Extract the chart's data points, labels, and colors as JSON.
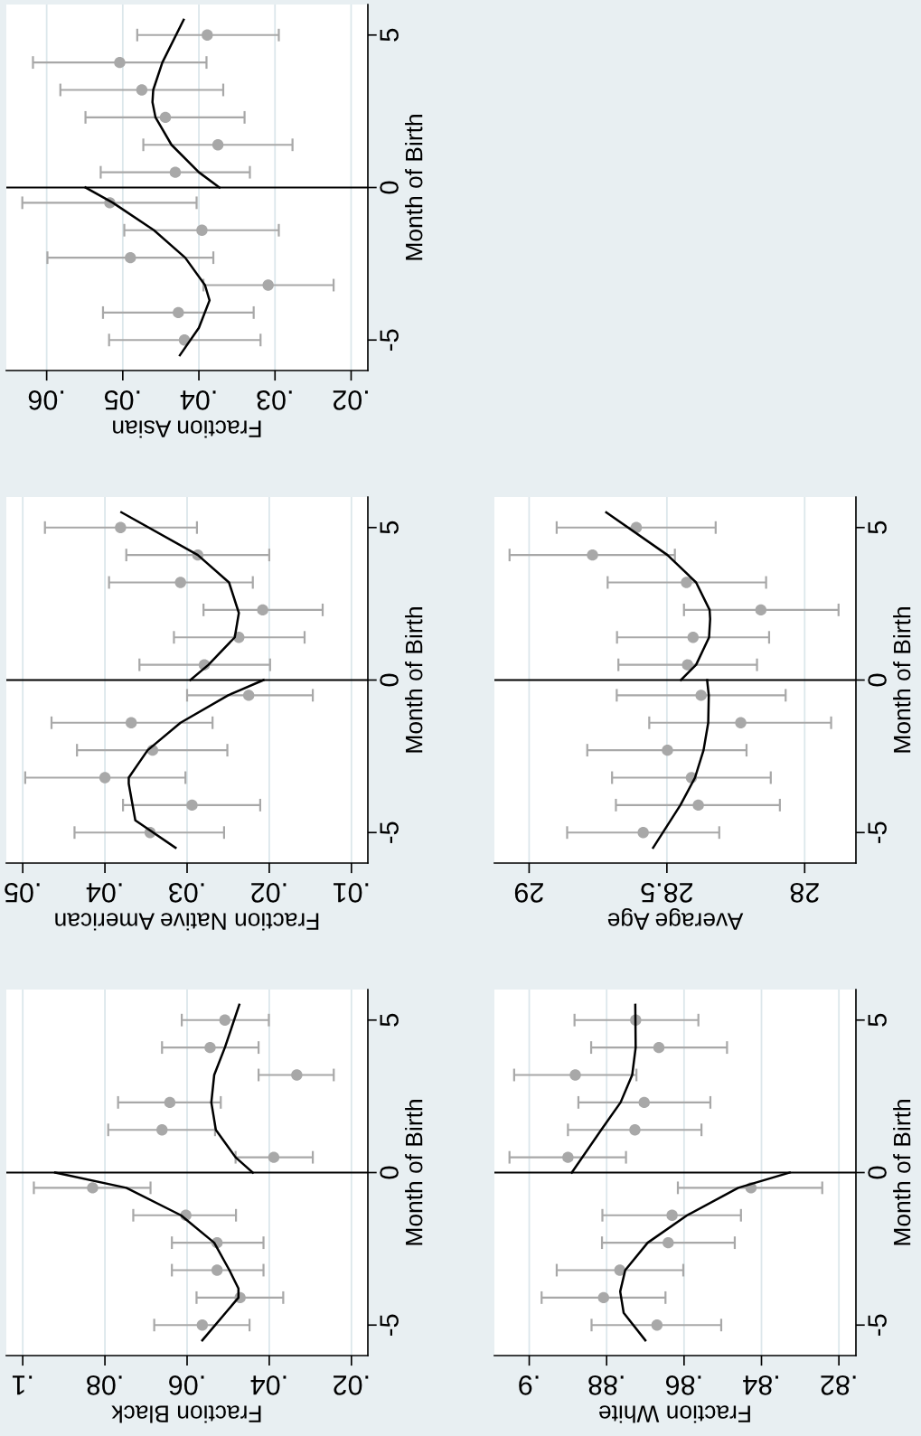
{
  "chart_data": [
    {
      "type": "scatter",
      "xlabel": "Fraction Black",
      "ylabel": "Month of Birth",
      "marker": "circle",
      "grid": "x",
      "ylim": [
        -6,
        6
      ],
      "yticks": [
        -5,
        0,
        5
      ],
      "xlim": [
        0.104,
        0.016
      ],
      "xticks": [
        {
          "value": 0.1,
          "label": ".1"
        },
        {
          "value": 0.08,
          "label": ".08"
        },
        {
          "value": 0.06,
          "label": ".06"
        },
        {
          "value": 0.04,
          "label": ".04"
        },
        {
          "value": 0.02,
          "label": ".02"
        }
      ],
      "ref_lines": [
        {
          "axis": "y",
          "value": 0,
          "color": "#000000"
        }
      ],
      "series": [
        {
          "color": "#a8a8a8",
          "x": [
            0.0563,
            0.0471,
            0.0527,
            0.0527,
            0.0603,
            0.083,
            0.0389,
            0.0661,
            0.0642,
            0.0333,
            0.0544,
            0.0508
          ],
          "values": [
            -5,
            -4.1,
            -3.2,
            -2.3,
            -1.4,
            -0.5,
            0.5,
            1.4,
            2.3,
            3.2,
            4.1,
            5
          ],
          "xerrors": [
            [
              0.0448,
              0.068
            ],
            [
              0.0366,
              0.0577
            ],
            [
              0.0414,
              0.0637
            ],
            [
              0.0414,
              0.0637
            ],
            [
              0.0481,
              0.0731
            ],
            [
              0.0689,
              0.0973
            ],
            [
              0.0294,
              0.0482
            ],
            [
              0.0532,
              0.0792
            ],
            [
              0.0518,
              0.0768
            ],
            [
              0.0243,
              0.0426
            ],
            [
              0.0426,
              0.0661
            ],
            [
              0.0401,
              0.0613
            ]
          ]
        },
        {
          "type": "line",
          "marker": "none",
          "color": "#000000",
          "x": [
            0.0563,
            0.0475,
            0.0475,
            0.0497,
            0.0534,
            0.0615,
            0.0748,
            0.0921
          ],
          "values": [
            -5.5,
            -4.1,
            -3.8,
            -3.2,
            -2.3,
            -1.4,
            -0.5,
            0
          ]
        },
        {
          "type": "line",
          "marker": "none",
          "color": "#000000",
          "x": [
            0.044,
            0.0482,
            0.053,
            0.0541,
            0.0534,
            0.0508,
            0.0473
          ],
          "values": [
            0,
            0.5,
            1.4,
            2.3,
            3.2,
            4.1,
            5.5
          ]
        }
      ]
    },
    {
      "type": "scatter",
      "xlabel": "Fraction Native American",
      "ylabel": "Month of Birth",
      "marker": "circle",
      "grid": "x",
      "ylim": [
        -6,
        6
      ],
      "yticks": [
        -5,
        0,
        5
      ],
      "xlim": [
        0.052,
        0.008
      ],
      "xticks": [
        {
          "value": 0.05,
          "label": ".05"
        },
        {
          "value": 0.04,
          "label": ".04"
        },
        {
          "value": 0.03,
          "label": ".03"
        },
        {
          "value": 0.02,
          "label": ".02"
        },
        {
          "value": 0.01,
          "label": ".01"
        }
      ],
      "ref_lines": [
        {
          "axis": "y",
          "value": 0,
          "color": "#000000"
        }
      ],
      "series": [
        {
          "color": "#a8a8a8",
          "x": [
            0.0345,
            0.0294,
            0.04,
            0.0342,
            0.0368,
            0.0225,
            0.0279,
            0.0237,
            0.0208,
            0.0308,
            0.0287,
            0.0381
          ],
          "values": [
            -5,
            -4.1,
            -3.2,
            -2.3,
            -1.4,
            -0.5,
            0.5,
            1.4,
            2.3,
            3.2,
            4.1,
            5
          ],
          "xerrors": [
            [
              0.0255,
              0.0437
            ],
            [
              0.0211,
              0.0378
            ],
            [
              0.0302,
              0.0497
            ],
            [
              0.0251,
              0.0434
            ],
            [
              0.0269,
              0.0465
            ],
            [
              0.0147,
              0.03
            ],
            [
              0.0199,
              0.0358
            ],
            [
              0.0157,
              0.0316
            ],
            [
              0.0135,
              0.028
            ],
            [
              0.022,
              0.0395
            ],
            [
              0.02,
              0.0374
            ],
            [
              0.0288,
              0.0473
            ]
          ]
        },
        {
          "type": "line",
          "marker": "none",
          "color": "#000000",
          "x": [
            0.0314,
            0.0363,
            0.0371,
            0.0371,
            0.0348,
            0.0308,
            0.025,
            0.0207
          ],
          "values": [
            -5.5,
            -4.6,
            -3.4,
            -3.2,
            -2.3,
            -1.4,
            -0.5,
            0
          ]
        },
        {
          "type": "line",
          "marker": "none",
          "color": "#000000",
          "x": [
            0.0296,
            0.0274,
            0.0242,
            0.0237,
            0.0249,
            0.0287,
            0.038
          ],
          "values": [
            0,
            0.5,
            1.4,
            2.2,
            3.2,
            4.1,
            5.5
          ]
        }
      ]
    },
    {
      "type": "scatter",
      "xlabel": "Fraction Asian",
      "ylabel": "Month of Birth",
      "marker": "circle",
      "grid": "x",
      "ylim": [
        -6,
        6
      ],
      "yticks": [
        -5,
        0,
        5
      ],
      "xlim": [
        0.0653,
        0.0178
      ],
      "xticks": [
        {
          "value": 0.06,
          "label": ".06"
        },
        {
          "value": 0.05,
          "label": ".05"
        },
        {
          "value": 0.04,
          "label": ".04"
        },
        {
          "value": 0.03,
          "label": ".03"
        },
        {
          "value": 0.02,
          "label": ".02"
        }
      ],
      "ref_lines": [
        {
          "axis": "y",
          "value": 0,
          "color": "#000000"
        }
      ],
      "series": [
        {
          "color": "#a8a8a8",
          "x": [
            0.0419,
            0.0427,
            0.0309,
            0.049,
            0.0396,
            0.0517,
            0.0431,
            0.0375,
            0.0444,
            0.0475,
            0.0504,
            0.0389
          ],
          "values": [
            -5,
            -4.1,
            -3.2,
            -2.3,
            -1.4,
            -0.5,
            0.5,
            1.4,
            2.3,
            3.2,
            4.1,
            5
          ],
          "xerrors": [
            [
              0.0319,
              0.0518
            ],
            [
              0.0328,
              0.0526
            ],
            [
              0.0223,
              0.0394
            ],
            [
              0.0381,
              0.0599
            ],
            [
              0.0295,
              0.0498
            ],
            [
              0.0403,
              0.0632
            ],
            [
              0.0333,
              0.0529
            ],
            [
              0.0277,
              0.0473
            ],
            [
              0.034,
              0.0549
            ],
            [
              0.0368,
              0.0582
            ],
            [
              0.039,
              0.0618
            ],
            [
              0.0295,
              0.0481
            ]
          ]
        },
        {
          "type": "line",
          "marker": "none",
          "color": "#000000",
          "x": [
            0.0425,
            0.04,
            0.0386,
            0.0392,
            0.0418,
            0.0459,
            0.0513,
            0.0549
          ],
          "values": [
            -5.5,
            -4.6,
            -3.7,
            -3.2,
            -2.3,
            -1.4,
            -0.5,
            0
          ]
        },
        {
          "type": "line",
          "marker": "none",
          "color": "#000000",
          "x": [
            0.0373,
            0.04,
            0.0436,
            0.0457,
            0.0461,
            0.046,
            0.0448,
            0.042
          ],
          "values": [
            0,
            0.5,
            1.4,
            2.3,
            2.8,
            3.2,
            4.1,
            5.5
          ]
        }
      ]
    },
    {
      "type": "scatter",
      "xlabel": "Fraction White",
      "ylabel": "Month of Birth",
      "marker": "circle",
      "grid": "x",
      "ylim": [
        -6,
        6
      ],
      "yticks": [
        -5,
        0,
        5
      ],
      "xlim": [
        0.909,
        0.8156
      ],
      "xticks": [
        {
          "value": 0.9,
          "label": ".9"
        },
        {
          "value": 0.88,
          "label": ".88"
        },
        {
          "value": 0.86,
          "label": ".86"
        },
        {
          "value": 0.84,
          "label": ".84"
        },
        {
          "value": 0.82,
          "label": ".82"
        }
      ],
      "ref_lines": [
        {
          "axis": "y",
          "value": 0,
          "color": "#000000"
        }
      ],
      "series": [
        {
          "color": "#a8a8a8",
          "x": [
            0.867,
            0.8808,
            0.8766,
            0.8641,
            0.8631,
            0.8427,
            0.89,
            0.8727,
            0.8703,
            0.8881,
            0.8665,
            0.8725
          ],
          "values": [
            -5,
            -4.1,
            -3.2,
            -2.3,
            -1.4,
            -0.5,
            0.5,
            1.4,
            2.3,
            3.2,
            4.1,
            5
          ],
          "xerrors": [
            [
              0.8504,
              0.8839
            ],
            [
              0.8648,
              0.8968
            ],
            [
              0.8602,
              0.8929
            ],
            [
              0.8469,
              0.8812
            ],
            [
              0.8453,
              0.8811
            ],
            [
              0.8243,
              0.8616
            ],
            [
              0.875,
              0.9051
            ],
            [
              0.8555,
              0.89
            ],
            [
              0.8532,
              0.8873
            ],
            [
              0.8723,
              0.9039
            ],
            [
              0.8489,
              0.884
            ],
            [
              0.8563,
              0.8883
            ]
          ]
        },
        {
          "type": "line",
          "marker": "none",
          "color": "#000000",
          "x": [
            0.87,
            0.8756,
            0.8765,
            0.8752,
            0.8694,
            0.8592,
            0.846,
            0.8327
          ],
          "values": [
            -5.5,
            -4.6,
            -3.9,
            -3.2,
            -2.3,
            -1.4,
            -0.5,
            0
          ]
        },
        {
          "type": "line",
          "marker": "none",
          "color": "#000000",
          "x": [
            0.889,
            0.8814,
            0.8764,
            0.8734,
            0.8725,
            0.8726
          ],
          "values": [
            0,
            1.4,
            2.3,
            3.2,
            4.1,
            5.5
          ]
        }
      ]
    },
    {
      "type": "scatter",
      "xlabel": "Average Age",
      "ylabel": "Month of Birth",
      "marker": "circle",
      "grid": "x",
      "ylim": [
        -6,
        6
      ],
      "yticks": [
        -5,
        0,
        5
      ],
      "xlim": [
        29.126,
        27.814
      ],
      "xticks": [
        29,
        28.5,
        28
      ],
      "ref_lines": [
        {
          "axis": "y",
          "value": 0,
          "color": "#000000"
        }
      ],
      "series": [
        {
          "color": "#a8a8a8",
          "x": [
            28.586,
            28.386,
            28.411,
            28.498,
            28.232,
            28.376,
            28.425,
            28.405,
            28.159,
            28.429,
            28.77,
            28.611
          ],
          "values": [
            -5,
            -4.1,
            -3.2,
            -2.3,
            -1.4,
            -0.5,
            0.5,
            1.4,
            2.3,
            3.2,
            4.1,
            5
          ],
          "xerrors": [
            [
              28.31,
              28.862
            ],
            [
              28.09,
              28.685
            ],
            [
              28.123,
              28.699
            ],
            [
              28.211,
              28.789
            ],
            [
              27.904,
              28.564
            ],
            [
              28.069,
              28.682
            ],
            [
              28.173,
              28.676
            ],
            [
              28.129,
              28.681
            ],
            [
              27.877,
              28.438
            ],
            [
              28.14,
              28.715
            ],
            [
              28.471,
              29.071
            ],
            [
              28.323,
              28.9
            ]
          ]
        },
        {
          "type": "line",
          "marker": "none",
          "color": "#000000",
          "x": [
            28.55,
            28.451,
            28.398,
            28.367,
            28.35,
            28.348,
            28.354
          ],
          "values": [
            -5.5,
            -4.1,
            -3.2,
            -2.3,
            -1.4,
            -0.5,
            0
          ]
        },
        {
          "type": "line",
          "marker": "none",
          "color": "#000000",
          "x": [
            28.449,
            28.394,
            28.347,
            28.343,
            28.345,
            28.394,
            28.498,
            28.72
          ],
          "values": [
            0,
            0.5,
            1.4,
            2.0,
            2.3,
            3.2,
            4.1,
            5.5
          ]
        }
      ]
    }
  ]
}
